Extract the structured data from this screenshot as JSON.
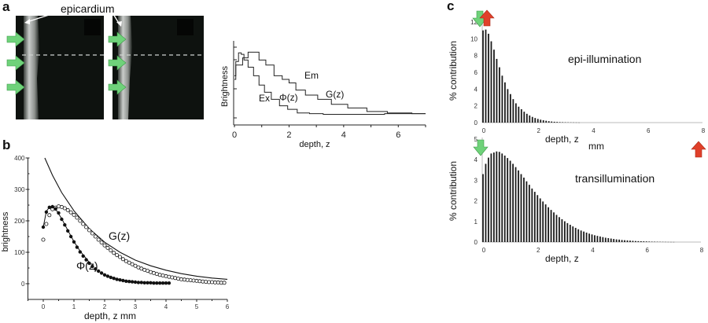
{
  "figure": {
    "panels": [
      "a",
      "b",
      "c"
    ],
    "colors": {
      "green_arrow": "#6fd27a",
      "red_arrow": "#e0402a",
      "image_bg": "#0e120f",
      "ink": "#111111"
    }
  },
  "panel_a_images": {
    "letter": "a",
    "callout": "epicardium",
    "images": [
      {
        "name": "left-tissue-image",
        "green_arrows": 3,
        "dashed_line": true
      },
      {
        "name": "right-tissue-image",
        "green_arrows": 3,
        "dashed_line": true
      }
    ]
  },
  "chart_data": [
    {
      "id": "panel-a-plot",
      "type": "line",
      "title": "",
      "xlabel": "depth, z",
      "ylabel": "Brightness",
      "xlim": [
        0,
        7
      ],
      "ylim": [
        0,
        1
      ],
      "xticks": [
        "0",
        "2",
        "4",
        "6"
      ],
      "yticks_labeled": false,
      "annotations": [
        "Em",
        "Ex",
        "Φ(z)",
        "G(z)"
      ],
      "series": [
        {
          "name": "Ex / Φ(z)",
          "x": [
            0,
            0.1,
            0.2,
            0.3,
            0.4,
            0.6,
            0.8,
            1.0,
            1.2,
            1.5,
            1.8,
            2.1,
            2.5,
            3.0,
            3.5,
            4.0,
            5.0,
            6.0,
            7.0
          ],
          "y": [
            0.6,
            0.8,
            0.92,
            0.9,
            0.82,
            0.72,
            0.6,
            0.47,
            0.37,
            0.27,
            0.18,
            0.13,
            0.08,
            0.07,
            0.06,
            0.06,
            0.06,
            0.07,
            0.07
          ]
        },
        {
          "name": "Em / G(z)",
          "x": [
            0,
            0.1,
            0.2,
            0.4,
            0.6,
            0.8,
            1.0,
            1.3,
            1.6,
            1.9,
            2.1,
            2.4,
            2.8,
            3.3,
            3.8,
            4.5,
            5.2,
            6.0,
            7.0
          ],
          "y": [
            0.55,
            0.75,
            0.75,
            0.85,
            0.93,
            0.93,
            0.82,
            0.75,
            0.6,
            0.55,
            0.5,
            0.4,
            0.33,
            0.27,
            0.2,
            0.15,
            0.1,
            0.08,
            0.07
          ]
        }
      ]
    },
    {
      "id": "panel-b-plot",
      "type": "scatter",
      "letter": "b",
      "xlabel": "depth, z  mm",
      "ylabel": "brightness",
      "xlim": [
        -0.5,
        6
      ],
      "ylim": [
        -50,
        400
      ],
      "xticks": [
        "0",
        "1",
        "2",
        "3",
        "4",
        "5",
        "6"
      ],
      "yticks": [
        "0",
        "100",
        "200",
        "300",
        "400"
      ],
      "annotations": [
        "G(z)",
        "Φ(z)"
      ],
      "series": [
        {
          "name": "Φ(z) (filled)",
          "x": [
            0,
            0.1,
            0.2,
            0.3,
            0.4,
            0.5,
            0.6,
            0.7,
            0.8,
            0.9,
            1.0,
            1.1,
            1.2,
            1.3,
            1.4,
            1.5,
            1.6,
            1.7,
            1.8,
            1.9,
            2.0,
            2.1,
            2.2,
            2.3,
            2.4,
            2.5,
            2.6,
            2.7,
            2.8,
            2.9,
            3.0,
            3.1,
            3.2,
            3.3,
            3.4,
            3.5,
            3.6,
            3.7,
            3.8,
            3.9,
            4.0,
            4.1
          ],
          "y": [
            180,
            228,
            243,
            245,
            238,
            225,
            205,
            187,
            168,
            150,
            133,
            116,
            101,
            88,
            76,
            65,
            55,
            47,
            40,
            34,
            28,
            24,
            20,
            17,
            14,
            12,
            10,
            8,
            7,
            6,
            5,
            4,
            4,
            3,
            3,
            3,
            2,
            2,
            2,
            2,
            2,
            2
          ]
        },
        {
          "name": "G(z) (open)",
          "x": [
            0,
            0.1,
            0.2,
            0.3,
            0.4,
            0.5,
            0.6,
            0.7,
            0.8,
            0.9,
            1.0,
            1.1,
            1.2,
            1.3,
            1.4,
            1.5,
            1.6,
            1.7,
            1.8,
            1.9,
            2.0,
            2.1,
            2.2,
            2.3,
            2.4,
            2.5,
            2.6,
            2.7,
            2.8,
            2.9,
            3.0,
            3.1,
            3.2,
            3.3,
            3.4,
            3.5,
            3.6,
            3.7,
            3.8,
            3.9,
            4.0,
            4.1,
            4.2,
            4.3,
            4.4,
            4.5,
            4.6,
            4.7,
            4.8,
            4.9,
            5.0,
            5.1,
            5.2,
            5.3,
            5.4,
            5.5,
            5.6,
            5.7,
            5.8,
            5.9
          ],
          "y": [
            140,
            190,
            218,
            237,
            242,
            246,
            244,
            240,
            234,
            227,
            219,
            210,
            200,
            190,
            180,
            170,
            160,
            150,
            140,
            131,
            122,
            114,
            106,
            98,
            91,
            85,
            78,
            72,
            67,
            62,
            57,
            52,
            48,
            44,
            41,
            37,
            34,
            31,
            28,
            26,
            24,
            22,
            20,
            18,
            16,
            14,
            13,
            12,
            11,
            10,
            9,
            8,
            7,
            6,
            5,
            5,
            4,
            4,
            3,
            3
          ]
        },
        {
          "name": "Φ(z) fit line",
          "x": [
            0,
            0.1,
            0.2,
            0.3,
            0.4,
            0.6,
            0.8,
            1.0,
            1.2,
            1.5
          ],
          "y": [
            180,
            230,
            244,
            246,
            238,
            207,
            170,
            134,
            104,
            68
          ]
        },
        {
          "name": "G(z) exponential curve",
          "x": [
            0.05,
            0.3,
            0.6,
            1.0,
            1.5,
            2.0,
            2.5,
            3.0,
            3.5,
            4.0,
            4.5,
            5.0,
            5.5,
            6.0
          ],
          "y": [
            400,
            345,
            290,
            232,
            175,
            132,
            100,
            75,
            57,
            43,
            32,
            24,
            18,
            14
          ]
        }
      ]
    },
    {
      "id": "panel-c-epi",
      "type": "bar",
      "letter": "c",
      "title": "epi-illumination",
      "xlabel": "depth, z",
      "xunit": "mm",
      "ylabel": "% contribution",
      "xlim": [
        0,
        8
      ],
      "ylim": [
        0,
        12
      ],
      "xticks": [
        "0",
        "2",
        "4",
        "6",
        "8"
      ],
      "yticks": [
        "0",
        "2",
        "4",
        "6",
        "8",
        "10",
        "12"
      ],
      "bar_step": 0.1,
      "x_start": 0,
      "values": [
        11.0,
        11.1,
        10.6,
        9.7,
        8.7,
        7.6,
        6.6,
        5.6,
        4.8,
        4.0,
        3.4,
        2.8,
        2.3,
        1.9,
        1.6,
        1.3,
        1.05,
        0.85,
        0.68,
        0.55,
        0.44,
        0.35,
        0.28,
        0.22,
        0.17,
        0.13,
        0.1,
        0.08,
        0.06,
        0.05,
        0.04,
        0.03,
        0.025,
        0.02,
        0.015,
        0.01
      ]
    },
    {
      "id": "panel-c-trans",
      "type": "bar",
      "title": "transillumination",
      "xlabel": "depth, z",
      "ylabel": "% contribution",
      "xlim": [
        0,
        8
      ],
      "ylim": [
        0,
        5
      ],
      "xticks": [
        "0",
        "2",
        "4",
        "6",
        "8"
      ],
      "yticks": [
        "0",
        "1",
        "2",
        "3",
        "4",
        "5"
      ],
      "bar_step": 0.1,
      "x_start": 0,
      "values": [
        3.3,
        3.8,
        4.1,
        4.3,
        4.35,
        4.4,
        4.38,
        4.3,
        4.2,
        4.08,
        3.95,
        3.8,
        3.64,
        3.48,
        3.3,
        3.13,
        2.95,
        2.78,
        2.6,
        2.44,
        2.28,
        2.12,
        1.97,
        1.83,
        1.69,
        1.56,
        1.44,
        1.32,
        1.21,
        1.11,
        1.01,
        0.92,
        0.84,
        0.76,
        0.69,
        0.62,
        0.56,
        0.51,
        0.46,
        0.41,
        0.37,
        0.33,
        0.3,
        0.27,
        0.24,
        0.21,
        0.19,
        0.17,
        0.15,
        0.13,
        0.12,
        0.1,
        0.09,
        0.08,
        0.07,
        0.06,
        0.05,
        0.045,
        0.04,
        0.035,
        0.03,
        0.025,
        0.02,
        0.018,
        0.015,
        0.012,
        0.01,
        0.008,
        0.006,
        0.005,
        0.004
      ]
    }
  ]
}
